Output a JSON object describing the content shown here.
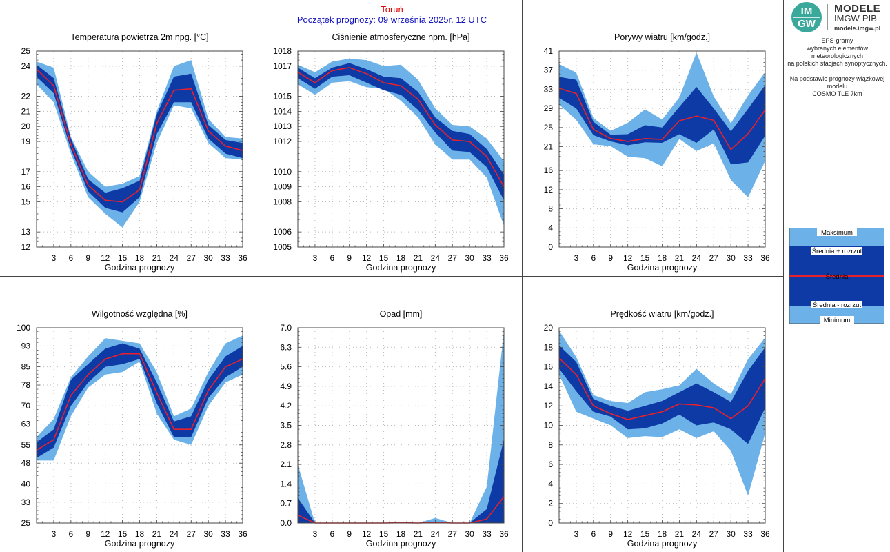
{
  "header": {
    "city": "Toruń",
    "start": "Początek prognozy: 09 września 2025r. 12 UTC"
  },
  "logo": {
    "mark_top": "IM",
    "mark_bottom": "GW",
    "line1": "MODELE",
    "line2": "IMGW-PIB",
    "line3": "modele.imgw.pl"
  },
  "description": {
    "line1": "EPS-gramy",
    "line2": "wybranych elementów meteorologicznych",
    "line3": "na polskich stacjach  synoptycznych.",
    "line4": "Na podstawie prognozy wiązkowej modelu",
    "line5": "COSMO TLE 7km"
  },
  "legend": {
    "items": [
      "Maksimum",
      "Średnia + rozrzut",
      "Średnia",
      "Średnia - rozrzut",
      "Minimum"
    ]
  },
  "colors": {
    "envelope": "#6cb2e8",
    "spread": "#0e3aa6",
    "mean": "#e8202c",
    "title_city": "#e00000",
    "title_start": "#1010c0"
  },
  "chart_data": [
    {
      "id": "temp",
      "type": "area",
      "title": "Temperatura powietrza 2m npg. [°C]",
      "xlabel": "Godzina prognozy",
      "x": [
        0,
        3,
        6,
        9,
        12,
        15,
        18,
        21,
        24,
        27,
        30,
        33,
        36
      ],
      "xticks": [
        3,
        6,
        9,
        12,
        15,
        18,
        21,
        24,
        27,
        30,
        33,
        36
      ],
      "ylim": [
        12,
        25
      ],
      "yticks": [
        12,
        13,
        15,
        16,
        17,
        19,
        20,
        21,
        22,
        24,
        25
      ],
      "ytick_labels": [
        "12",
        "13",
        "15",
        "16",
        "17",
        "19",
        "20",
        "21",
        "22",
        "24",
        "25"
      ],
      "max": [
        24.3,
        23.9,
        19.3,
        17.0,
        16.0,
        16.2,
        16.7,
        21.0,
        24.0,
        24.4,
        20.5,
        19.3,
        19.2
      ],
      "mean_plus": [
        24.1,
        23.2,
        19.2,
        16.5,
        15.6,
        15.9,
        16.4,
        20.8,
        23.3,
        23.5,
        20.1,
        19.1,
        18.9
      ],
      "mean": [
        23.8,
        22.7,
        18.8,
        16.1,
        15.1,
        15.0,
        15.8,
        20.2,
        22.4,
        22.5,
        19.7,
        18.7,
        18.4
      ],
      "mean_minus": [
        23.3,
        22.2,
        18.5,
        15.7,
        14.6,
        14.3,
        15.3,
        19.5,
        21.6,
        21.6,
        19.2,
        18.2,
        17.9
      ],
      "min": [
        22.8,
        21.6,
        18.2,
        15.3,
        14.2,
        13.3,
        15.0,
        18.9,
        21.4,
        21.2,
        18.9,
        17.9,
        17.8
      ]
    },
    {
      "id": "pressure",
      "type": "area",
      "title": "Ciśnienie atmosferyczne npm. [hPa]",
      "xlabel": "Godzina prognozy",
      "x": [
        0,
        3,
        6,
        9,
        12,
        15,
        18,
        21,
        24,
        27,
        30,
        33,
        36
      ],
      "xticks": [
        3,
        6,
        9,
        12,
        15,
        18,
        21,
        24,
        27,
        30,
        33,
        36
      ],
      "ylim": [
        1005,
        1018
      ],
      "yticks": [
        1005,
        1006,
        1008,
        1009,
        1010,
        1012,
        1013,
        1014,
        1015,
        1017,
        1018
      ],
      "ytick_labels": [
        "1005",
        "1006",
        "1008",
        "1009",
        "1010",
        "1012",
        "1013",
        "1014",
        "1015",
        "1017",
        "1018"
      ],
      "max": [
        1017.1,
        1016.6,
        1017.3,
        1017.5,
        1017.4,
        1017.0,
        1017.1,
        1016.1,
        1014.2,
        1013.1,
        1013.0,
        1012.2,
        1010.7
      ],
      "mean_plus": [
        1016.9,
        1016.2,
        1016.9,
        1017.2,
        1016.8,
        1016.3,
        1016.2,
        1015.3,
        1013.6,
        1012.7,
        1012.5,
        1011.5,
        1009.8
      ],
      "mean": [
        1016.6,
        1015.9,
        1016.7,
        1016.9,
        1016.5,
        1015.9,
        1015.7,
        1014.8,
        1013.1,
        1012.1,
        1012.0,
        1011.0,
        1009.0
      ],
      "mean_minus": [
        1016.2,
        1015.5,
        1016.3,
        1016.4,
        1015.9,
        1015.4,
        1015.1,
        1014.1,
        1012.6,
        1011.4,
        1011.3,
        1010.3,
        1008.1
      ],
      "min": [
        1015.8,
        1015.1,
        1015.9,
        1016.0,
        1015.6,
        1015.5,
        1014.7,
        1013.6,
        1011.8,
        1010.8,
        1010.8,
        1009.6,
        1006.4
      ]
    },
    {
      "id": "gusts",
      "type": "area",
      "title": "Porywy wiatru [km/godz.]",
      "xlabel": "Godzina prognozy",
      "x": [
        0,
        3,
        6,
        9,
        12,
        15,
        18,
        21,
        24,
        27,
        30,
        33,
        36
      ],
      "xticks": [
        3,
        6,
        9,
        12,
        15,
        18,
        21,
        24,
        27,
        30,
        33,
        36
      ],
      "ylim": [
        0,
        41
      ],
      "yticks": [
        0,
        4,
        8,
        12,
        16,
        21,
        25,
        29,
        33,
        37,
        41
      ],
      "ytick_labels": [
        "0",
        "4",
        "8",
        "12",
        "16",
        "21",
        "25",
        "29",
        "33",
        "37",
        "41"
      ],
      "max": [
        38.3,
        36.5,
        27.0,
        24.3,
        26.0,
        28.8,
        26.7,
        31.3,
        40.7,
        31.5,
        25.9,
        31.7,
        36.6
      ],
      "mean_plus": [
        35.6,
        35.0,
        26.2,
        23.5,
        23.6,
        25.5,
        25.0,
        29.3,
        33.5,
        29.0,
        24.2,
        28.9,
        33.9
      ],
      "mean": [
        33.2,
        32.1,
        24.6,
        22.7,
        22.1,
        22.7,
        22.5,
        26.4,
        27.4,
        26.5,
        20.4,
        23.7,
        28.7
      ],
      "mean_minus": [
        31.2,
        29.0,
        23.4,
        22.1,
        21.3,
        21.9,
        21.8,
        23.6,
        21.8,
        24.6,
        17.3,
        17.7,
        23.3
      ],
      "min": [
        29.8,
        26.6,
        21.5,
        21.1,
        18.9,
        18.6,
        16.9,
        22.6,
        20.1,
        21.7,
        14.0,
        10.4,
        18.0
      ]
    },
    {
      "id": "humidity",
      "type": "area",
      "title": "Wilgotność względna [%]",
      "xlabel": "Godzina prognozy",
      "x": [
        0,
        3,
        6,
        9,
        12,
        15,
        18,
        21,
        24,
        27,
        30,
        33,
        36
      ],
      "xticks": [
        3,
        6,
        9,
        12,
        15,
        18,
        21,
        24,
        27,
        30,
        33,
        36
      ],
      "ylim": [
        25,
        100
      ],
      "yticks": [
        25,
        33,
        40,
        48,
        55,
        63,
        70,
        78,
        85,
        93,
        100
      ],
      "ytick_labels": [
        "25",
        "33",
        "40",
        "48",
        "55",
        "63",
        "70",
        "78",
        "85",
        "93",
        "100"
      ],
      "max": [
        58,
        65,
        81,
        89,
        96,
        95,
        94,
        83,
        66,
        69,
        83,
        94,
        97
      ],
      "mean_plus": [
        56,
        61,
        80,
        86,
        92,
        94,
        92,
        79,
        64,
        66,
        80,
        89,
        93
      ],
      "mean": [
        53,
        57,
        74,
        82,
        88,
        90,
        90,
        75,
        61,
        61,
        76,
        85,
        88
      ],
      "mean_minus": [
        50,
        54,
        70,
        79,
        85,
        86,
        88,
        71,
        58,
        58,
        73,
        81,
        85
      ],
      "min": [
        49,
        49,
        66,
        77,
        82,
        83,
        87,
        67,
        57,
        55,
        70,
        79,
        82
      ]
    },
    {
      "id": "precip",
      "type": "area",
      "title": "Opad [mm]",
      "xlabel": "Godzina prognozy",
      "x": [
        0,
        3,
        6,
        9,
        12,
        15,
        18,
        21,
        24,
        27,
        30,
        33,
        36
      ],
      "xticks": [
        3,
        6,
        9,
        12,
        15,
        18,
        21,
        24,
        27,
        30,
        33,
        36
      ],
      "ylim": [
        0,
        7
      ],
      "yticks": [
        0,
        0.7,
        1.4,
        2.1,
        2.8,
        3.5,
        4.2,
        4.9,
        5.6,
        6.3,
        7.0
      ],
      "ytick_labels": [
        "0.0",
        "0.7",
        "1.4",
        "2.1",
        "2.8",
        "3.5",
        "4.2",
        "4.9",
        "5.6",
        "6.3",
        "7.0"
      ],
      "max": [
        2.1,
        0,
        0,
        0,
        0,
        0,
        0.05,
        0,
        0.18,
        0,
        0,
        1.3,
        6.9
      ],
      "mean_plus": [
        0.9,
        0,
        0,
        0,
        0,
        0,
        0.02,
        0,
        0.05,
        0,
        0,
        0.5,
        3.0
      ],
      "mean": [
        0.28,
        0,
        0,
        0,
        0,
        0,
        0.01,
        0,
        0.02,
        0,
        0,
        0.14,
        0.95
      ],
      "mean_minus": [
        0,
        0,
        0,
        0,
        0,
        0,
        0,
        0,
        0,
        0,
        0,
        0,
        0
      ],
      "min": [
        0,
        0,
        0,
        0,
        0,
        0,
        0,
        0,
        0,
        0,
        0,
        0,
        0
      ]
    },
    {
      "id": "wind",
      "type": "area",
      "title": "Prędkość wiatru [km/godz.]",
      "xlabel": "Godzina prognozy",
      "x": [
        0,
        3,
        6,
        9,
        12,
        15,
        18,
        21,
        24,
        27,
        30,
        33,
        36
      ],
      "xticks": [
        3,
        6,
        9,
        12,
        15,
        18,
        21,
        24,
        27,
        30,
        33,
        36
      ],
      "ylim": [
        0,
        20
      ],
      "yticks": [
        0,
        2,
        4,
        6,
        8,
        10,
        12,
        14,
        16,
        18,
        20
      ],
      "ytick_labels": [
        "0",
        "2",
        "4",
        "6",
        "8",
        "10",
        "12",
        "14",
        "16",
        "18",
        "20"
      ],
      "max": [
        19.7,
        17.0,
        13.1,
        12.5,
        12.3,
        13.4,
        13.7,
        14.1,
        15.8,
        14.3,
        13.2,
        16.8,
        19.0
      ],
      "mean_plus": [
        18.2,
        16.5,
        12.7,
        12.0,
        11.5,
        12.0,
        12.5,
        13.4,
        14.3,
        13.4,
        12.4,
        15.6,
        18.0
      ],
      "mean": [
        16.9,
        15.2,
        12.0,
        11.2,
        10.6,
        11.0,
        11.4,
        12.2,
        12.1,
        11.8,
        10.7,
        12.0,
        14.8
      ],
      "mean_minus": [
        15.8,
        13.5,
        11.4,
        10.9,
        9.6,
        9.7,
        10.2,
        11.1,
        10.0,
        10.3,
        9.6,
        8.1,
        11.8
      ],
      "min": [
        15.2,
        11.4,
        10.7,
        10.0,
        8.7,
        8.9,
        8.8,
        9.6,
        8.7,
        9.4,
        7.4,
        2.8,
        9.2
      ]
    }
  ]
}
